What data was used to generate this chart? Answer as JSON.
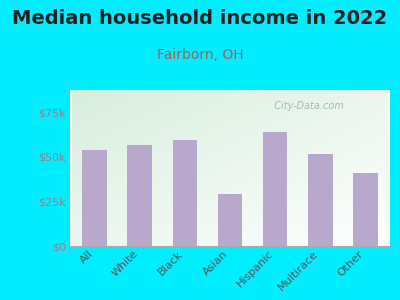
{
  "title": "Median household income in 2022",
  "subtitle": "Fairborn, OH",
  "categories": [
    "All",
    "White",
    "Black",
    "Asian",
    "Hispanic",
    "Multirace",
    "Other"
  ],
  "values": [
    54000,
    56500,
    59500,
    29000,
    64000,
    51500,
    41000
  ],
  "bar_color": "#b8a8cc",
  "background_outer": "#00eeff",
  "background_inner_colors": [
    "#d8eedd",
    "#f8fff8"
  ],
  "title_fontsize": 14,
  "title_color": "#222222",
  "subtitle_fontsize": 10,
  "subtitle_color": "#996655",
  "tick_label_color": "#555555",
  "ytick_label_color": "#888888",
  "ylim": [
    0,
    87500
  ],
  "yticks": [
    0,
    25000,
    50000,
    75000
  ],
  "ytick_labels": [
    "$0",
    "$25k",
    "$50k",
    "$75k"
  ],
  "watermark": "  City-Data.com",
  "watermark_color": "#aaaaaa"
}
